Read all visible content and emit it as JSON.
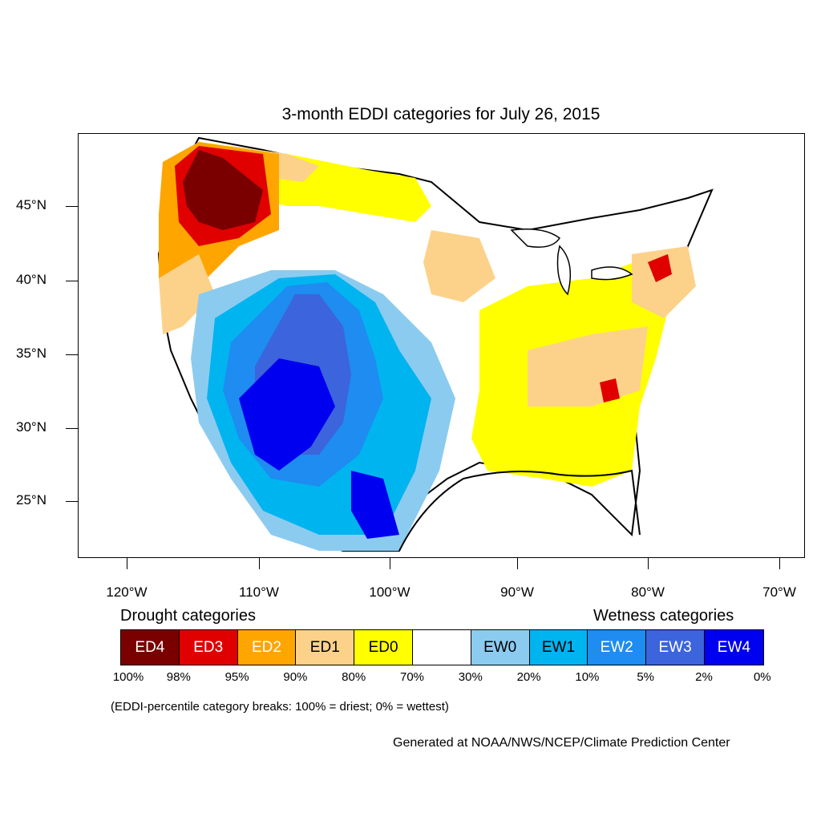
{
  "title": "3-month EDDI categories for July 26, 2015",
  "y_axis": {
    "ticks": [
      "45°N",
      "40°N",
      "35°N",
      "30°N",
      "25°N"
    ]
  },
  "x_axis": {
    "ticks": [
      "120°W",
      "110°W",
      "100°W",
      "90°W",
      "80°W",
      "70°W"
    ]
  },
  "legend": {
    "drought_title": "Drought categories",
    "wetness_title": "Wetness categories",
    "categories": [
      {
        "label": "ED4",
        "color": "#7a0000",
        "text_color": "#ffffff"
      },
      {
        "label": "ED3",
        "color": "#e00000",
        "text_color": "#ffffff"
      },
      {
        "label": "ED2",
        "color": "#ffa500",
        "text_color": "#ffffff"
      },
      {
        "label": "ED1",
        "color": "#fcd28a",
        "text_color": "#000000"
      },
      {
        "label": "ED0",
        "color": "#ffff00",
        "text_color": "#000000"
      },
      {
        "label": "",
        "color": "#ffffff",
        "text_color": "#000000"
      },
      {
        "label": "EW0",
        "color": "#8ccbf0",
        "text_color": "#000000"
      },
      {
        "label": "EW1",
        "color": "#00b4f0",
        "text_color": "#000000"
      },
      {
        "label": "EW2",
        "color": "#1e8cf0",
        "text_color": "#ffffff"
      },
      {
        "label": "EW3",
        "color": "#3c64dc",
        "text_color": "#ffffff"
      },
      {
        "label": "EW4",
        "color": "#0000f0",
        "text_color": "#ffffff"
      }
    ],
    "breaks": [
      "100%",
      "98%",
      "95%",
      "90%",
      "80%",
      "70%",
      "30%",
      "20%",
      "10%",
      "5%",
      "2%",
      "0%"
    ]
  },
  "note": "(EDDI-percentile category breaks: 100% = driest; 0% = wettest)",
  "credit": "Generated at NOAA/NWS/NCEP/Climate Prediction Center"
}
